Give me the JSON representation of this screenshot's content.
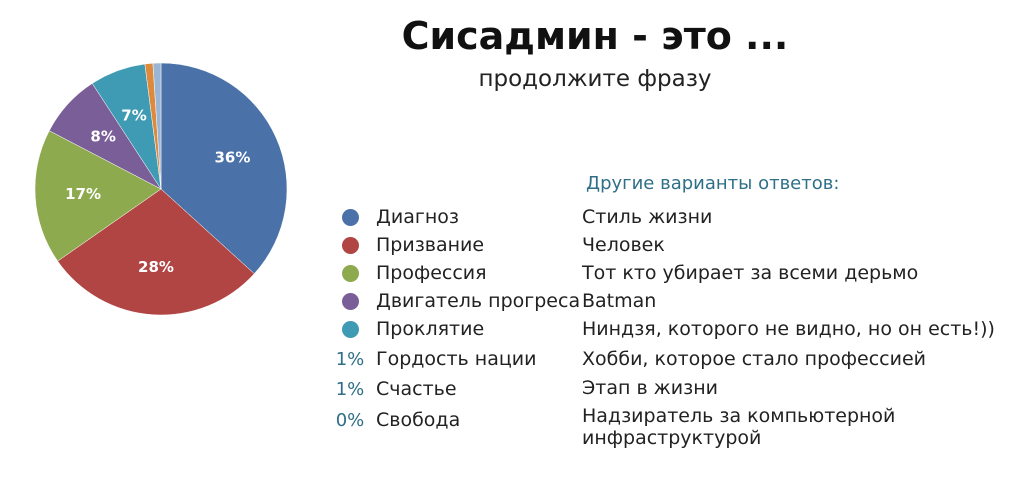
{
  "header": {
    "title": "Сисадмин - это ...",
    "subtitle": "продолжите фразу"
  },
  "chart_data": {
    "type": "pie",
    "categories": [
      "Диагноз",
      "Призвание",
      "Профессия",
      "Двигатель прогреса",
      "Проклятие",
      "Гордость нации",
      "Счастье",
      "Свобода"
    ],
    "values": [
      36,
      28,
      17,
      8,
      7,
      1,
      1,
      0
    ],
    "labels": [
      "36%",
      "28%",
      "17%",
      "8%",
      "7%",
      "1%",
      "1%",
      "0%"
    ],
    "colors": [
      "#4a72a8",
      "#b04543",
      "#8daa4f",
      "#7a5e98",
      "#3f9ab3",
      "#dd8a3c",
      "#9bb5d4",
      "#d79a99"
    ],
    "legend_placement": "right"
  },
  "legend": [
    {
      "label": "Диагноз",
      "color": "#4a72a8"
    },
    {
      "label": "Призвание",
      "color": "#b04543"
    },
    {
      "label": "Профессия",
      "color": "#8daa4f"
    },
    {
      "label": "Двигатель прогреса",
      "color": "#7a5e98"
    },
    {
      "label": "Проклятие",
      "color": "#3f9ab3"
    },
    {
      "label": "Гордость нации",
      "pct": "1%"
    },
    {
      "label": "Счастье",
      "pct": "1%"
    },
    {
      "label": "Свобода",
      "pct": "0%"
    }
  ],
  "other_answers": {
    "title": "Другие варианты ответов:",
    "items": [
      "Стиль жизни",
      "Человек",
      "Тот кто убирает за всеми дерьмо",
      "Batman",
      "Ниндзя, которого не видно, но он есть!))",
      "Хобби, которое стало профессией",
      "Этап в жизни",
      "Надзиратель за компьютерной инфраструктурой"
    ]
  }
}
